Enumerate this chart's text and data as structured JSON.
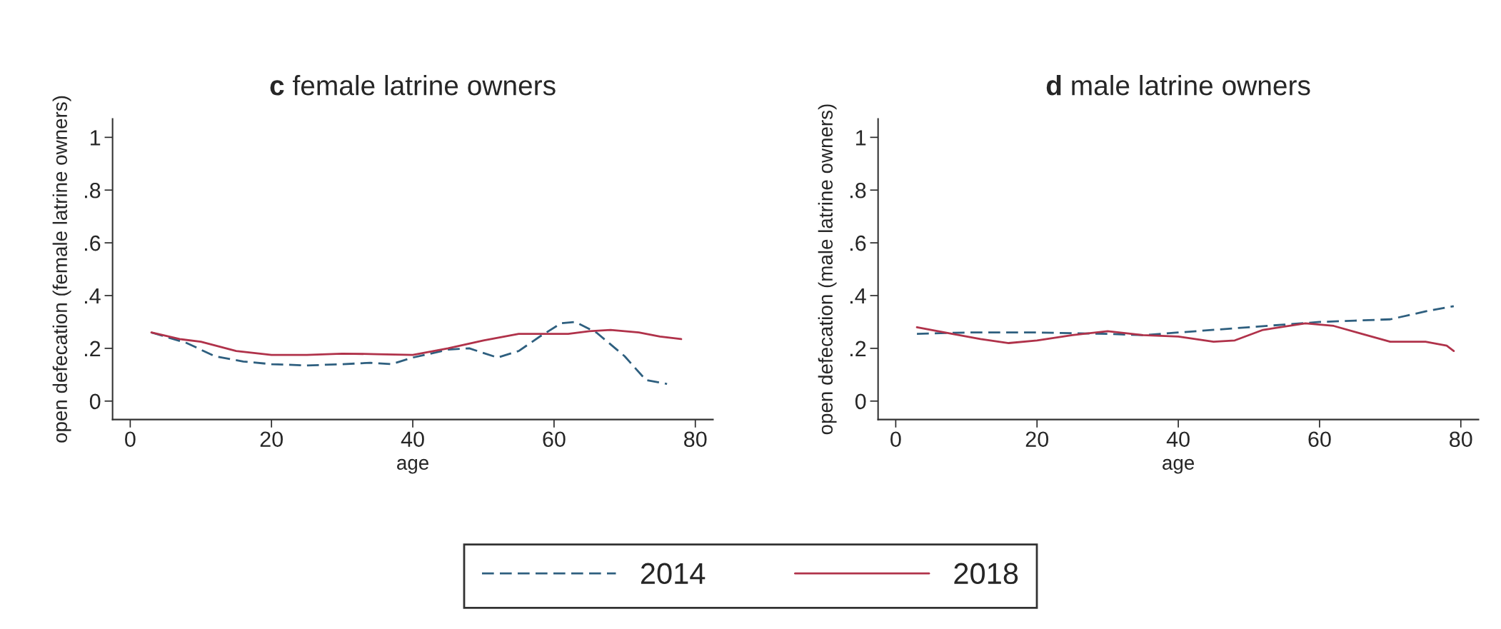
{
  "chart_data": [
    {
      "type": "line",
      "title": "c female latrine owners",
      "xlabel": "age",
      "ylabel": "open defecation (female latrine owners)",
      "xlim": [
        -2.5,
        82.5
      ],
      "ylim": [
        -0.07,
        1.07
      ],
      "xticks": [
        0,
        20,
        40,
        60,
        80
      ],
      "yticks": [
        0,
        {
          "value": 0.2,
          "label": ".2"
        },
        {
          "value": 0.4,
          "label": ".4"
        },
        {
          "value": 0.6,
          "label": ".6"
        },
        {
          "value": 0.8,
          "label": ".8"
        },
        1
      ],
      "grid": false,
      "legend": "bottom",
      "series": [
        {
          "name": "2014",
          "color": "#2e5f7f",
          "line_style": "dashed",
          "x": [
            3,
            8,
            12,
            16,
            20,
            25,
            30,
            34,
            37,
            40,
            45,
            48,
            52,
            55,
            58,
            61,
            63,
            66,
            70,
            73,
            76
          ],
          "values": [
            0.26,
            0.22,
            0.17,
            0.15,
            0.14,
            0.135,
            0.14,
            0.145,
            0.14,
            0.165,
            0.195,
            0.2,
            0.165,
            0.19,
            0.245,
            0.295,
            0.3,
            0.26,
            0.17,
            0.08,
            0.065
          ]
        },
        {
          "name": "2018",
          "color": "#b0324a",
          "line_style": "solid",
          "x": [
            3,
            7,
            10,
            15,
            20,
            25,
            30,
            35,
            40,
            45,
            50,
            55,
            60,
            62,
            65,
            68,
            72,
            75,
            78
          ],
          "values": [
            0.26,
            0.235,
            0.225,
            0.19,
            0.175,
            0.175,
            0.18,
            0.178,
            0.175,
            0.2,
            0.23,
            0.255,
            0.255,
            0.255,
            0.265,
            0.27,
            0.26,
            0.245,
            0.235
          ]
        }
      ]
    },
    {
      "type": "line",
      "title": "d male latrine owners",
      "xlabel": "age",
      "ylabel": "open defecation (male latrine owners)",
      "xlim": [
        -2.5,
        82.5
      ],
      "ylim": [
        -0.07,
        1.07
      ],
      "xticks": [
        0,
        20,
        40,
        60,
        80
      ],
      "yticks": [
        0,
        {
          "value": 0.2,
          "label": ".2"
        },
        {
          "value": 0.4,
          "label": ".4"
        },
        {
          "value": 0.6,
          "label": ".6"
        },
        {
          "value": 0.8,
          "label": ".8"
        },
        1
      ],
      "grid": false,
      "series": [
        {
          "name": "2014",
          "color": "#2e5f7f",
          "line_style": "dashed",
          "x": [
            3,
            10,
            20,
            30,
            35,
            40,
            50,
            55,
            60,
            65,
            70,
            75,
            79
          ],
          "values": [
            0.255,
            0.26,
            0.26,
            0.255,
            0.25,
            0.26,
            0.28,
            0.29,
            0.3,
            0.305,
            0.31,
            0.34,
            0.36
          ]
        },
        {
          "name": "2018",
          "color": "#b0324a",
          "line_style": "solid",
          "x": [
            3,
            8,
            12,
            16,
            20,
            25,
            30,
            35,
            40,
            45,
            48,
            52,
            58,
            62,
            66,
            70,
            75,
            78,
            79
          ],
          "values": [
            0.28,
            0.255,
            0.235,
            0.22,
            0.23,
            0.25,
            0.265,
            0.25,
            0.245,
            0.225,
            0.23,
            0.27,
            0.295,
            0.285,
            0.255,
            0.225,
            0.225,
            0.21,
            0.19
          ]
        }
      ]
    }
  ]
}
